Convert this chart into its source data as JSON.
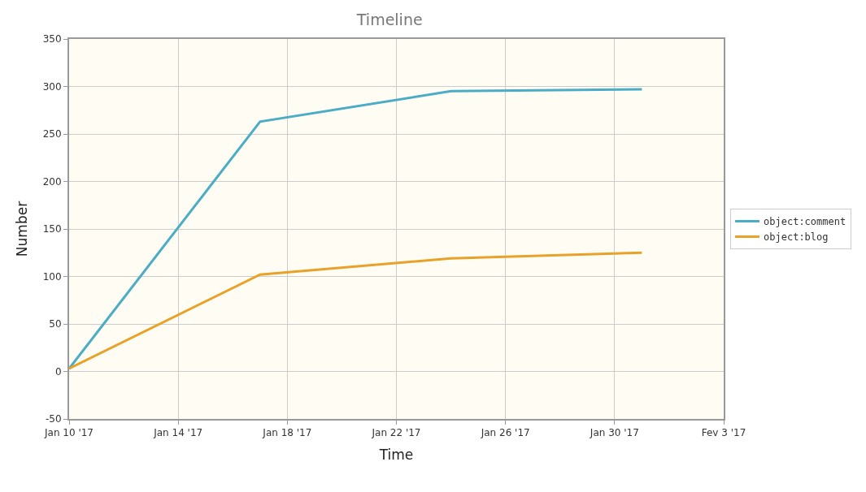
{
  "chart_data": {
    "type": "line",
    "title": "Timeline",
    "xlabel": "Time",
    "ylabel": "Number",
    "x": [
      "2017-01-10",
      "2017-01-17",
      "2017-01-24",
      "2017-01-31"
    ],
    "series": [
      {
        "name": "object:comment",
        "color": "#4bacc6",
        "values": [
          3,
          263,
          295,
          297
        ]
      },
      {
        "name": "object:blog",
        "color": "#e8a22a",
        "values": [
          3,
          102,
          119,
          125
        ]
      }
    ],
    "xlim": [
      "2017-01-10",
      "2017-02-03"
    ],
    "xticks": [
      {
        "value": "2017-01-10",
        "label": "Jan 10 '17"
      },
      {
        "value": "2017-01-14",
        "label": "Jan 14 '17"
      },
      {
        "value": "2017-01-18",
        "label": "Jan 18 '17"
      },
      {
        "value": "2017-01-22",
        "label": "Jan 22 '17"
      },
      {
        "value": "2017-01-26",
        "label": "Jan 26 '17"
      },
      {
        "value": "2017-01-30",
        "label": "Jan 30 '17"
      },
      {
        "value": "2017-02-03",
        "label": "Fev 3 '17"
      }
    ],
    "ylim": [
      -50,
      350
    ],
    "yticks": [
      -50,
      0,
      50,
      100,
      150,
      200,
      250,
      300,
      350
    ],
    "grid": true,
    "legend": "right",
    "marker": "none",
    "line_style": "solid"
  }
}
